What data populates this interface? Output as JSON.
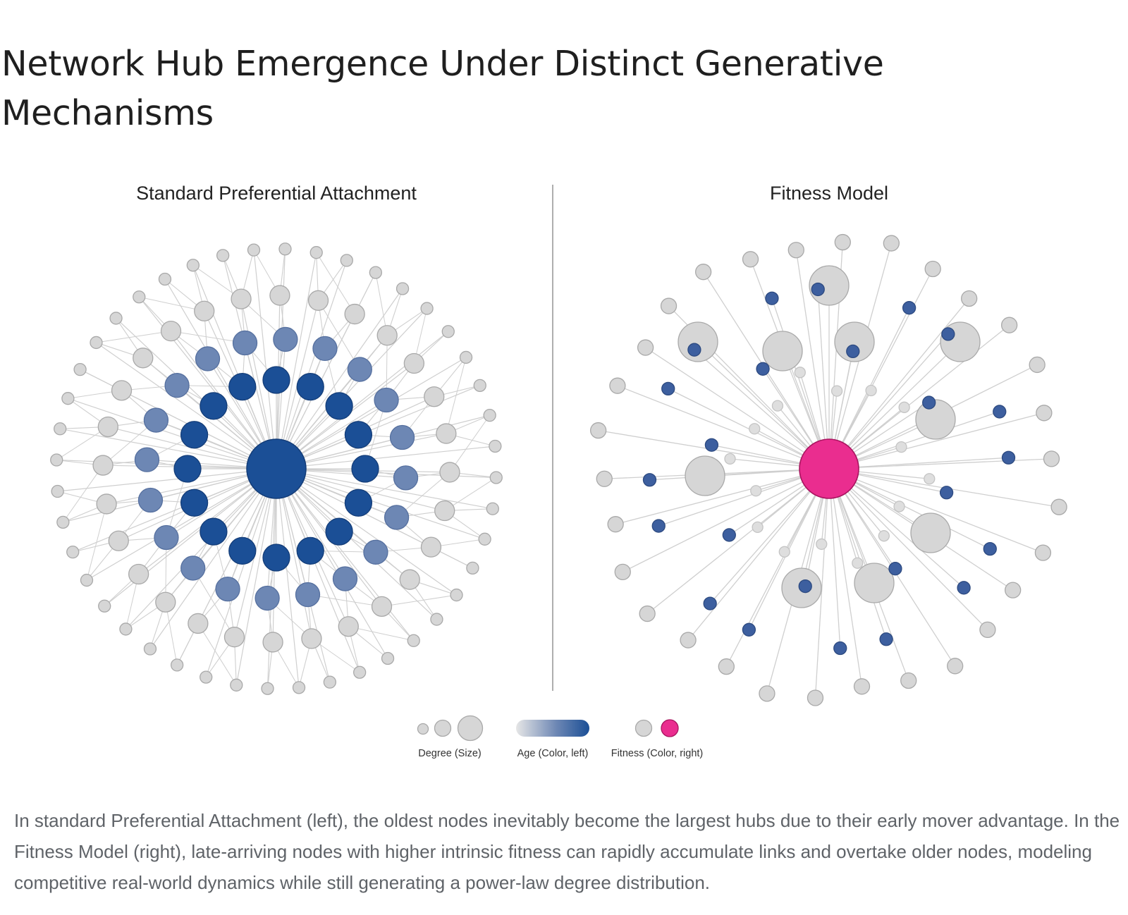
{
  "title": "Network Hub Emergence Under Distinct Generative Mechanisms",
  "panels": {
    "left_title": "Standard Preferential Attachment",
    "right_title": "Fitness Model"
  },
  "legend": {
    "degree_label": "Degree (Size)",
    "age_label": "Age (Color, left)",
    "fitness_label": "Fitness (Color, right)"
  },
  "colors": {
    "hub_old": "#1b4f96",
    "mid_blue": "#6d87b4",
    "young_gray": "#d6d6d6",
    "fitness_hub": "#ea2d8f",
    "fitness_small": "#3d5f9f",
    "edge": "#cfcfcf"
  },
  "caption": "In standard Preferential Attachment (left), the oldest nodes inevitably become the largest hubs due to their early mover advantage. In the Fitness Model (right), late-arriving nodes with higher intrinsic fitness can rapidly accumulate links and overtake older nodes, modeling competitive real-world dynamics while still generating a power-law degree distribution."
}
